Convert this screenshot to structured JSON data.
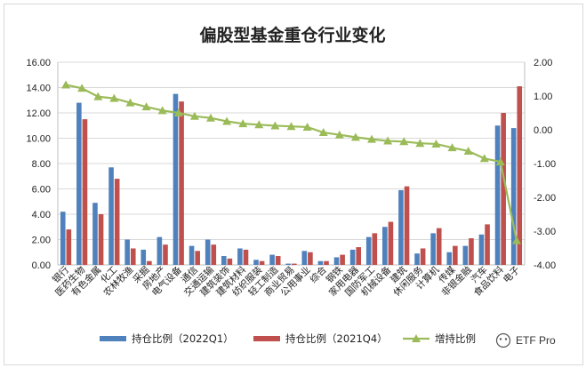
{
  "chart_data": {
    "type": "bar",
    "title": "偏股型基金重仓行业变化",
    "categories": [
      "银行",
      "医药生物",
      "有色金属",
      "化工",
      "农林牧渔",
      "采掘",
      "房地产",
      "电气设备",
      "通信",
      "交通运输",
      "建筑装饰",
      "建筑材料",
      "纺织服装",
      "轻工制造",
      "商业贸易",
      "公用事业",
      "综合",
      "钢铁",
      "家用电器",
      "国防军工",
      "机械设备",
      "建筑",
      "休闲服务",
      "计算机",
      "传媒",
      "非银金融",
      "汽车",
      "食品饮料",
      "电子"
    ],
    "series": [
      {
        "name": "持仓比例（2022Q1）",
        "axis": "left",
        "color": "#4f81bd",
        "values": [
          4.2,
          12.8,
          4.9,
          7.7,
          2.0,
          1.2,
          2.2,
          13.5,
          1.5,
          2.0,
          0.7,
          1.3,
          0.4,
          0.8,
          0.1,
          1.1,
          0.3,
          0.6,
          1.2,
          2.2,
          3.0,
          5.9,
          0.9,
          2.5,
          1.0,
          1.5,
          2.4,
          11.0,
          10.8
        ]
      },
      {
        "name": "持仓比例（2021Q4）",
        "axis": "left",
        "color": "#c0504d",
        "values": [
          2.8,
          11.5,
          4.0,
          6.8,
          1.3,
          0.3,
          1.6,
          12.9,
          1.1,
          1.6,
          0.5,
          1.2,
          0.3,
          0.7,
          0.1,
          1.0,
          0.3,
          0.8,
          1.4,
          2.5,
          3.4,
          6.2,
          1.3,
          2.9,
          1.5,
          2.1,
          3.2,
          12.0,
          14.1
        ]
      },
      {
        "name": "增持比例",
        "axis": "right",
        "type": "line",
        "color": "#9bbb59",
        "values": [
          1.33,
          1.23,
          0.98,
          0.93,
          0.8,
          0.68,
          0.57,
          0.5,
          0.4,
          0.35,
          0.25,
          0.18,
          0.15,
          0.12,
          0.1,
          0.08,
          -0.08,
          -0.15,
          -0.22,
          -0.28,
          -0.33,
          -0.35,
          -0.4,
          -0.42,
          -0.53,
          -0.63,
          -0.85,
          -0.95,
          -3.28
        ]
      }
    ],
    "ylim_left": [
      0,
      16
    ],
    "yticks_left": [
      "0.00",
      "2.00",
      "4.00",
      "6.00",
      "8.00",
      "10.00",
      "12.00",
      "14.00",
      "16.00"
    ],
    "ylim_right": [
      -4,
      2
    ],
    "yticks_right": [
      "-4.00",
      "-3.00",
      "-2.00",
      "-1.00",
      "0.00",
      "1.00",
      "2.00"
    ],
    "grid": true,
    "legend_position": "bottom"
  },
  "watermark": "ETF Pro"
}
